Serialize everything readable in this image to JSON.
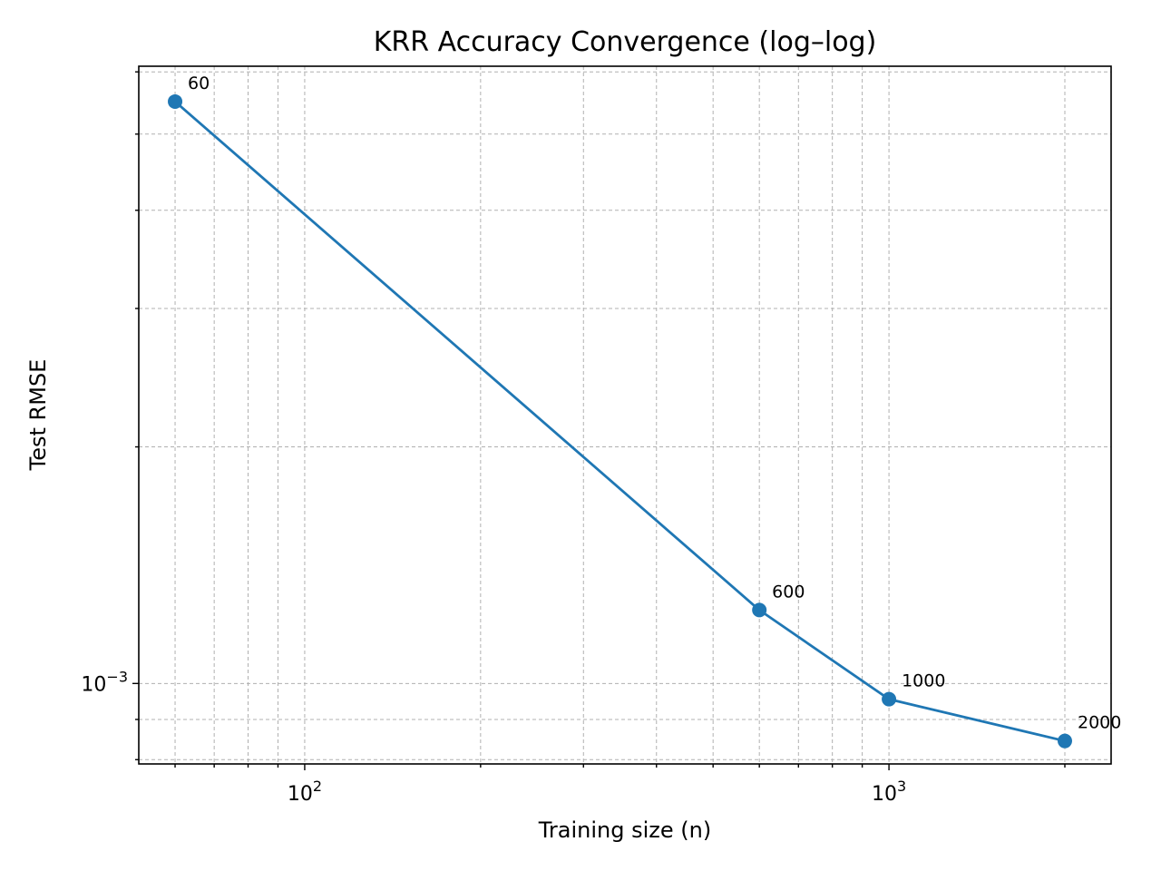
{
  "chart_data": {
    "type": "line",
    "title": "KRR Accuracy Convergence (log–log)",
    "xlabel": "Training size (n)",
    "ylabel": "Test RMSE",
    "xscale": "log",
    "yscale": "log",
    "xlim": [
      52,
      2400
    ],
    "ylim": [
      0.00079,
      0.0061
    ],
    "grid": true,
    "legend": "none",
    "x_major_ticks": [
      {
        "value": 100,
        "base": "10",
        "exp": "2"
      },
      {
        "value": 1000,
        "base": "10",
        "exp": "3"
      }
    ],
    "y_major_ticks": [
      {
        "value": 0.001,
        "base": "10",
        "exp": "−3"
      }
    ],
    "series": [
      {
        "color": "#1f77b4",
        "x": [
          60,
          600,
          1000,
          2000
        ],
        "y": [
          0.0055,
          0.00124,
          0.000955,
          0.000845
        ],
        "point_labels": [
          "60",
          "600",
          "1000",
          "2000"
        ]
      }
    ]
  }
}
